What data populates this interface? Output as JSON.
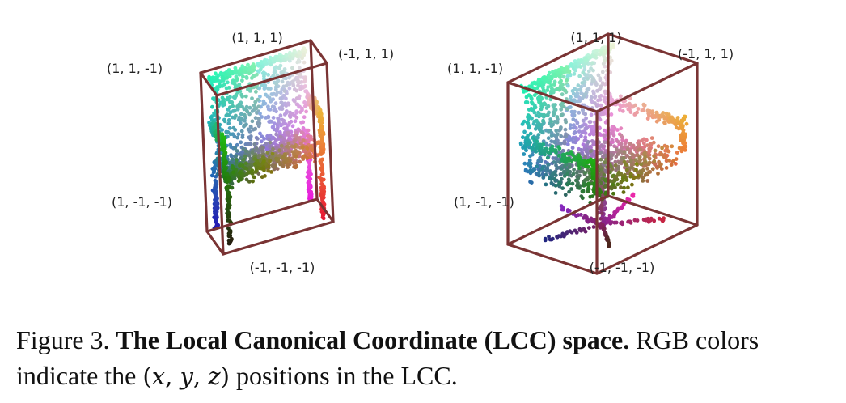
{
  "figure": {
    "left_plot": {
      "corner_labels": {
        "top": "(1, 1, 1)",
        "top_left": "(1, 1, -1)",
        "top_right": "(-1, 1, 1)",
        "bottom_left": "(1, -1, -1)",
        "bottom": "(-1, -1, -1)"
      }
    },
    "right_plot": {
      "corner_labels": {
        "top": "(1, 1, 1)",
        "top_left": "(1, 1, -1)",
        "top_right": "(-1, 1, 1)",
        "bottom_left": "(1, -1, -1)",
        "bottom": "(-1, -1, -1)"
      }
    },
    "box_color": "#7a3434",
    "caption": {
      "label": "Figure 3.",
      "title": "The Local Canonical Coordinate (LCC) space.",
      "text_before_math": "RGB colors indicate the",
      "math_open": "(",
      "math_x": "x",
      "math_sep1": ", ",
      "math_y": "y",
      "math_sep2": ", ",
      "math_z": "z",
      "math_close": ")",
      "text_after_math": "positions in the LCC."
    }
  }
}
